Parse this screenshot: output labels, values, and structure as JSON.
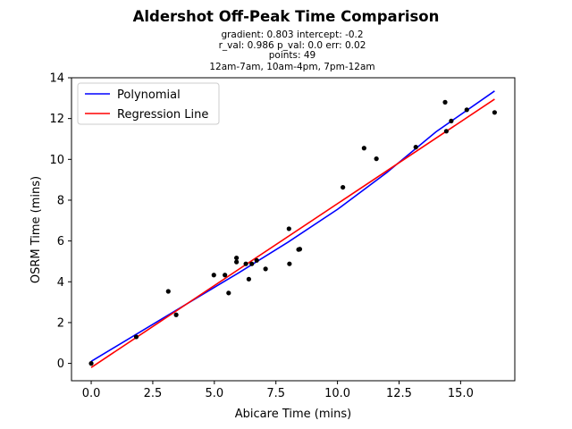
{
  "chart_data": {
    "type": "scatter",
    "title": "Aldershot Off-Peak Time Comparison",
    "subtitle_lines": [
      "gradient: 0.803  intercept: -0.2",
      "r_val: 0.986  p_val: 0.0  err: 0.02",
      "points: 49",
      "12am-7am, 10am-4pm, 7pm-12am"
    ],
    "xlabel": "Abicare Time (mins)",
    "ylabel": "OSRM Time (mins)",
    "xlim": [
      -0.8,
      17.2
    ],
    "ylim": [
      -0.85,
      14.0
    ],
    "xticks": [
      0.0,
      2.5,
      5.0,
      7.5,
      10.0,
      12.5,
      15.0
    ],
    "xtick_labels": [
      "0.0",
      "2.5",
      "5.0",
      "7.5",
      "10.0",
      "12.5",
      "15.0"
    ],
    "yticks": [
      0,
      2,
      4,
      6,
      8,
      10,
      12,
      14
    ],
    "ytick_labels": [
      "0",
      "2",
      "4",
      "6",
      "8",
      "10",
      "12",
      "14"
    ],
    "grid": false,
    "legend_position": "top-left",
    "points": [
      {
        "x": 0.0,
        "y": 0.0
      },
      {
        "x": 1.83,
        "y": 1.3
      },
      {
        "x": 3.13,
        "y": 3.53
      },
      {
        "x": 3.45,
        "y": 2.38
      },
      {
        "x": 4.98,
        "y": 4.33
      },
      {
        "x": 5.43,
        "y": 4.33
      },
      {
        "x": 5.58,
        "y": 3.45
      },
      {
        "x": 5.9,
        "y": 4.97
      },
      {
        "x": 5.9,
        "y": 5.17
      },
      {
        "x": 6.28,
        "y": 4.88
      },
      {
        "x": 6.4,
        "y": 4.13
      },
      {
        "x": 6.52,
        "y": 4.88
      },
      {
        "x": 6.72,
        "y": 5.05
      },
      {
        "x": 7.08,
        "y": 4.63
      },
      {
        "x": 8.03,
        "y": 6.6
      },
      {
        "x": 8.05,
        "y": 4.88
      },
      {
        "x": 8.42,
        "y": 5.58
      },
      {
        "x": 8.47,
        "y": 5.6
      },
      {
        "x": 10.22,
        "y": 8.63
      },
      {
        "x": 11.08,
        "y": 10.55
      },
      {
        "x": 11.58,
        "y": 10.03
      },
      {
        "x": 13.18,
        "y": 10.6
      },
      {
        "x": 14.37,
        "y": 12.8
      },
      {
        "x": 14.42,
        "y": 11.38
      },
      {
        "x": 14.62,
        "y": 11.88
      },
      {
        "x": 15.25,
        "y": 12.43
      },
      {
        "x": 16.38,
        "y": 12.3
      }
    ],
    "series": [
      {
        "name": "Polynomial",
        "color": "#0000ff",
        "x": [
          0.0,
          2.0,
          4.0,
          6.0,
          8.0,
          10.0,
          12.0,
          14.0,
          16.38
        ],
        "y": [
          0.1,
          1.55,
          3.0,
          4.45,
          5.95,
          7.55,
          9.35,
          11.35,
          13.35
        ]
      },
      {
        "name": "Regression Line",
        "color": "#ff0000",
        "x": [
          0.0,
          16.38
        ],
        "y": [
          -0.2,
          12.95
        ]
      }
    ]
  }
}
